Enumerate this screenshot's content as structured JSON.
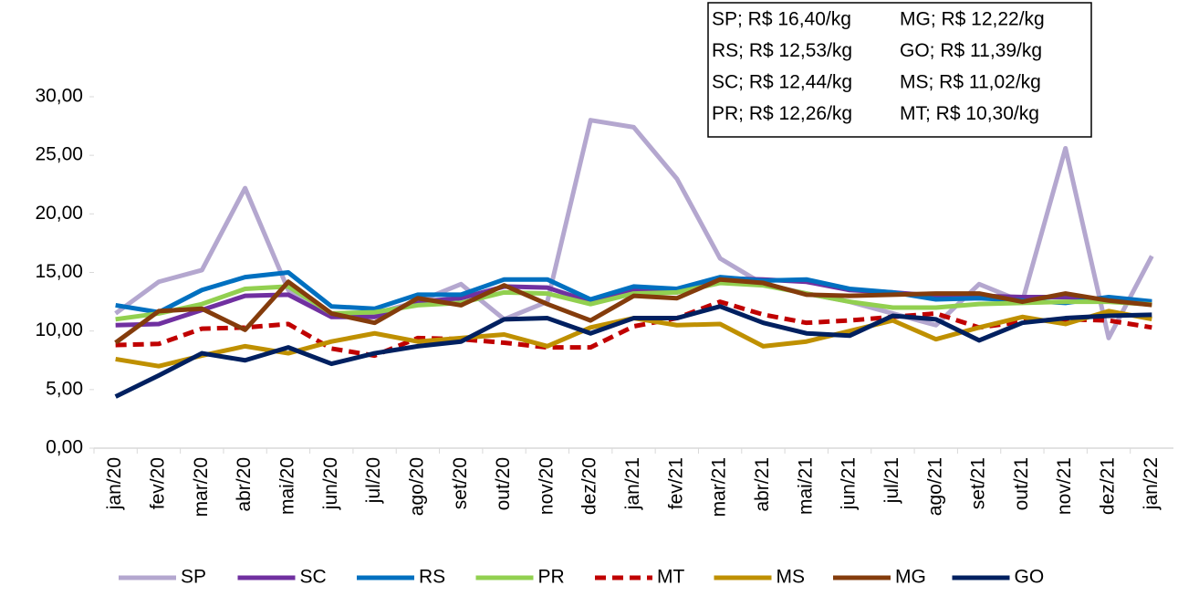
{
  "chart_data": {
    "type": "line",
    "categories": [
      "jan/20",
      "fev/20",
      "mar/20",
      "abr/20",
      "mai/20",
      "jun/20",
      "jul/20",
      "ago/20",
      "set/20",
      "out/20",
      "nov/20",
      "dez/20",
      "jan/21",
      "fev/21",
      "mar/21",
      "abr/21",
      "mai/21",
      "jun/21",
      "jul/21",
      "ago/21",
      "set/21",
      "out/21",
      "nov/21",
      "dez/21",
      "jan/22"
    ],
    "ylim": [
      0,
      30
    ],
    "yticks": [
      {
        "value": 0,
        "label": "0,00"
      },
      {
        "value": 5,
        "label": "5,00"
      },
      {
        "value": 10,
        "label": "10,00"
      },
      {
        "value": 15,
        "label": "15,00"
      },
      {
        "value": 20,
        "label": "20,00"
      },
      {
        "value": 25,
        "label": "25,00"
      },
      {
        "value": 30,
        "label": "30,00"
      }
    ],
    "annotations": [
      "SP; R$ 16,40/kg",
      "MG; R$ 12,22/kg",
      "RS; R$ 12,53/kg",
      "GO; R$ 11,39/kg",
      "SC; R$ 12,44/kg",
      "MS; R$ 11,02/kg",
      "PR; R$ 12,26/kg",
      "MT; R$ 10,30/kg"
    ],
    "series": [
      {
        "name": "SP",
        "color": "#b4a7cf",
        "values": [
          11.5,
          14.2,
          15.2,
          22.2,
          13.5,
          11.5,
          11.5,
          12.5,
          14.0,
          11.0,
          12.5,
          28.0,
          27.4,
          23.0,
          16.2,
          14.0,
          13.2,
          12.5,
          11.5,
          10.5,
          14.0,
          12.5,
          25.6,
          9.4,
          16.4
        ]
      },
      {
        "name": "SC",
        "color": "#7030a0",
        "values": [
          10.5,
          10.6,
          11.8,
          13.0,
          13.1,
          11.2,
          11.2,
          12.5,
          12.8,
          13.8,
          13.7,
          12.5,
          13.5,
          13.3,
          14.5,
          14.4,
          14.2,
          13.5,
          13.3,
          13.0,
          13.0,
          12.9,
          12.9,
          12.7,
          12.44
        ]
      },
      {
        "name": "RS",
        "color": "#0070c0",
        "values": [
          12.2,
          11.6,
          13.5,
          14.6,
          15.0,
          12.1,
          11.9,
          13.1,
          13.1,
          14.4,
          14.4,
          12.7,
          13.8,
          13.6,
          14.6,
          14.3,
          14.4,
          13.6,
          13.3,
          12.7,
          12.8,
          12.6,
          12.4,
          12.9,
          12.53
        ]
      },
      {
        "name": "PR",
        "color": "#92d050",
        "values": [
          11.0,
          11.5,
          12.3,
          13.6,
          13.8,
          11.5,
          11.6,
          12.2,
          12.4,
          13.3,
          13.2,
          12.3,
          13.2,
          13.3,
          14.1,
          13.9,
          13.2,
          12.5,
          12.0,
          12.0,
          12.3,
          12.4,
          12.5,
          12.5,
          12.26
        ]
      },
      {
        "name": "MT",
        "color": "#c00000",
        "dashed": true,
        "values": [
          8.8,
          8.9,
          10.2,
          10.3,
          10.6,
          8.5,
          7.9,
          9.4,
          9.3,
          9.0,
          8.6,
          8.6,
          10.4,
          11.1,
          12.5,
          11.4,
          10.7,
          10.9,
          11.2,
          11.5,
          10.3,
          10.8,
          11.0,
          10.9,
          10.3
        ]
      },
      {
        "name": "MS",
        "color": "#bf9000",
        "values": [
          7.6,
          7.0,
          7.9,
          8.7,
          8.1,
          9.1,
          9.8,
          9.1,
          9.4,
          9.7,
          8.7,
          10.3,
          11.1,
          10.5,
          10.6,
          8.7,
          9.1,
          10.0,
          10.9,
          9.3,
          10.3,
          11.2,
          10.6,
          11.7,
          11.02
        ]
      },
      {
        "name": "MG",
        "color": "#843c0c",
        "values": [
          9.0,
          11.7,
          11.9,
          10.1,
          14.2,
          11.5,
          10.7,
          12.8,
          12.2,
          13.9,
          12.3,
          10.9,
          13.0,
          12.8,
          14.4,
          14.1,
          13.1,
          13.0,
          13.1,
          13.2,
          13.2,
          12.5,
          13.2,
          12.6,
          12.22
        ]
      },
      {
        "name": "GO",
        "color": "#002060",
        "values": [
          4.4,
          6.2,
          8.1,
          7.5,
          8.6,
          7.2,
          8.1,
          8.7,
          9.1,
          11.0,
          11.1,
          9.8,
          11.1,
          11.1,
          12.1,
          10.7,
          9.8,
          9.6,
          11.3,
          11.0,
          9.2,
          10.7,
          11.1,
          11.3,
          11.39
        ]
      }
    ]
  }
}
